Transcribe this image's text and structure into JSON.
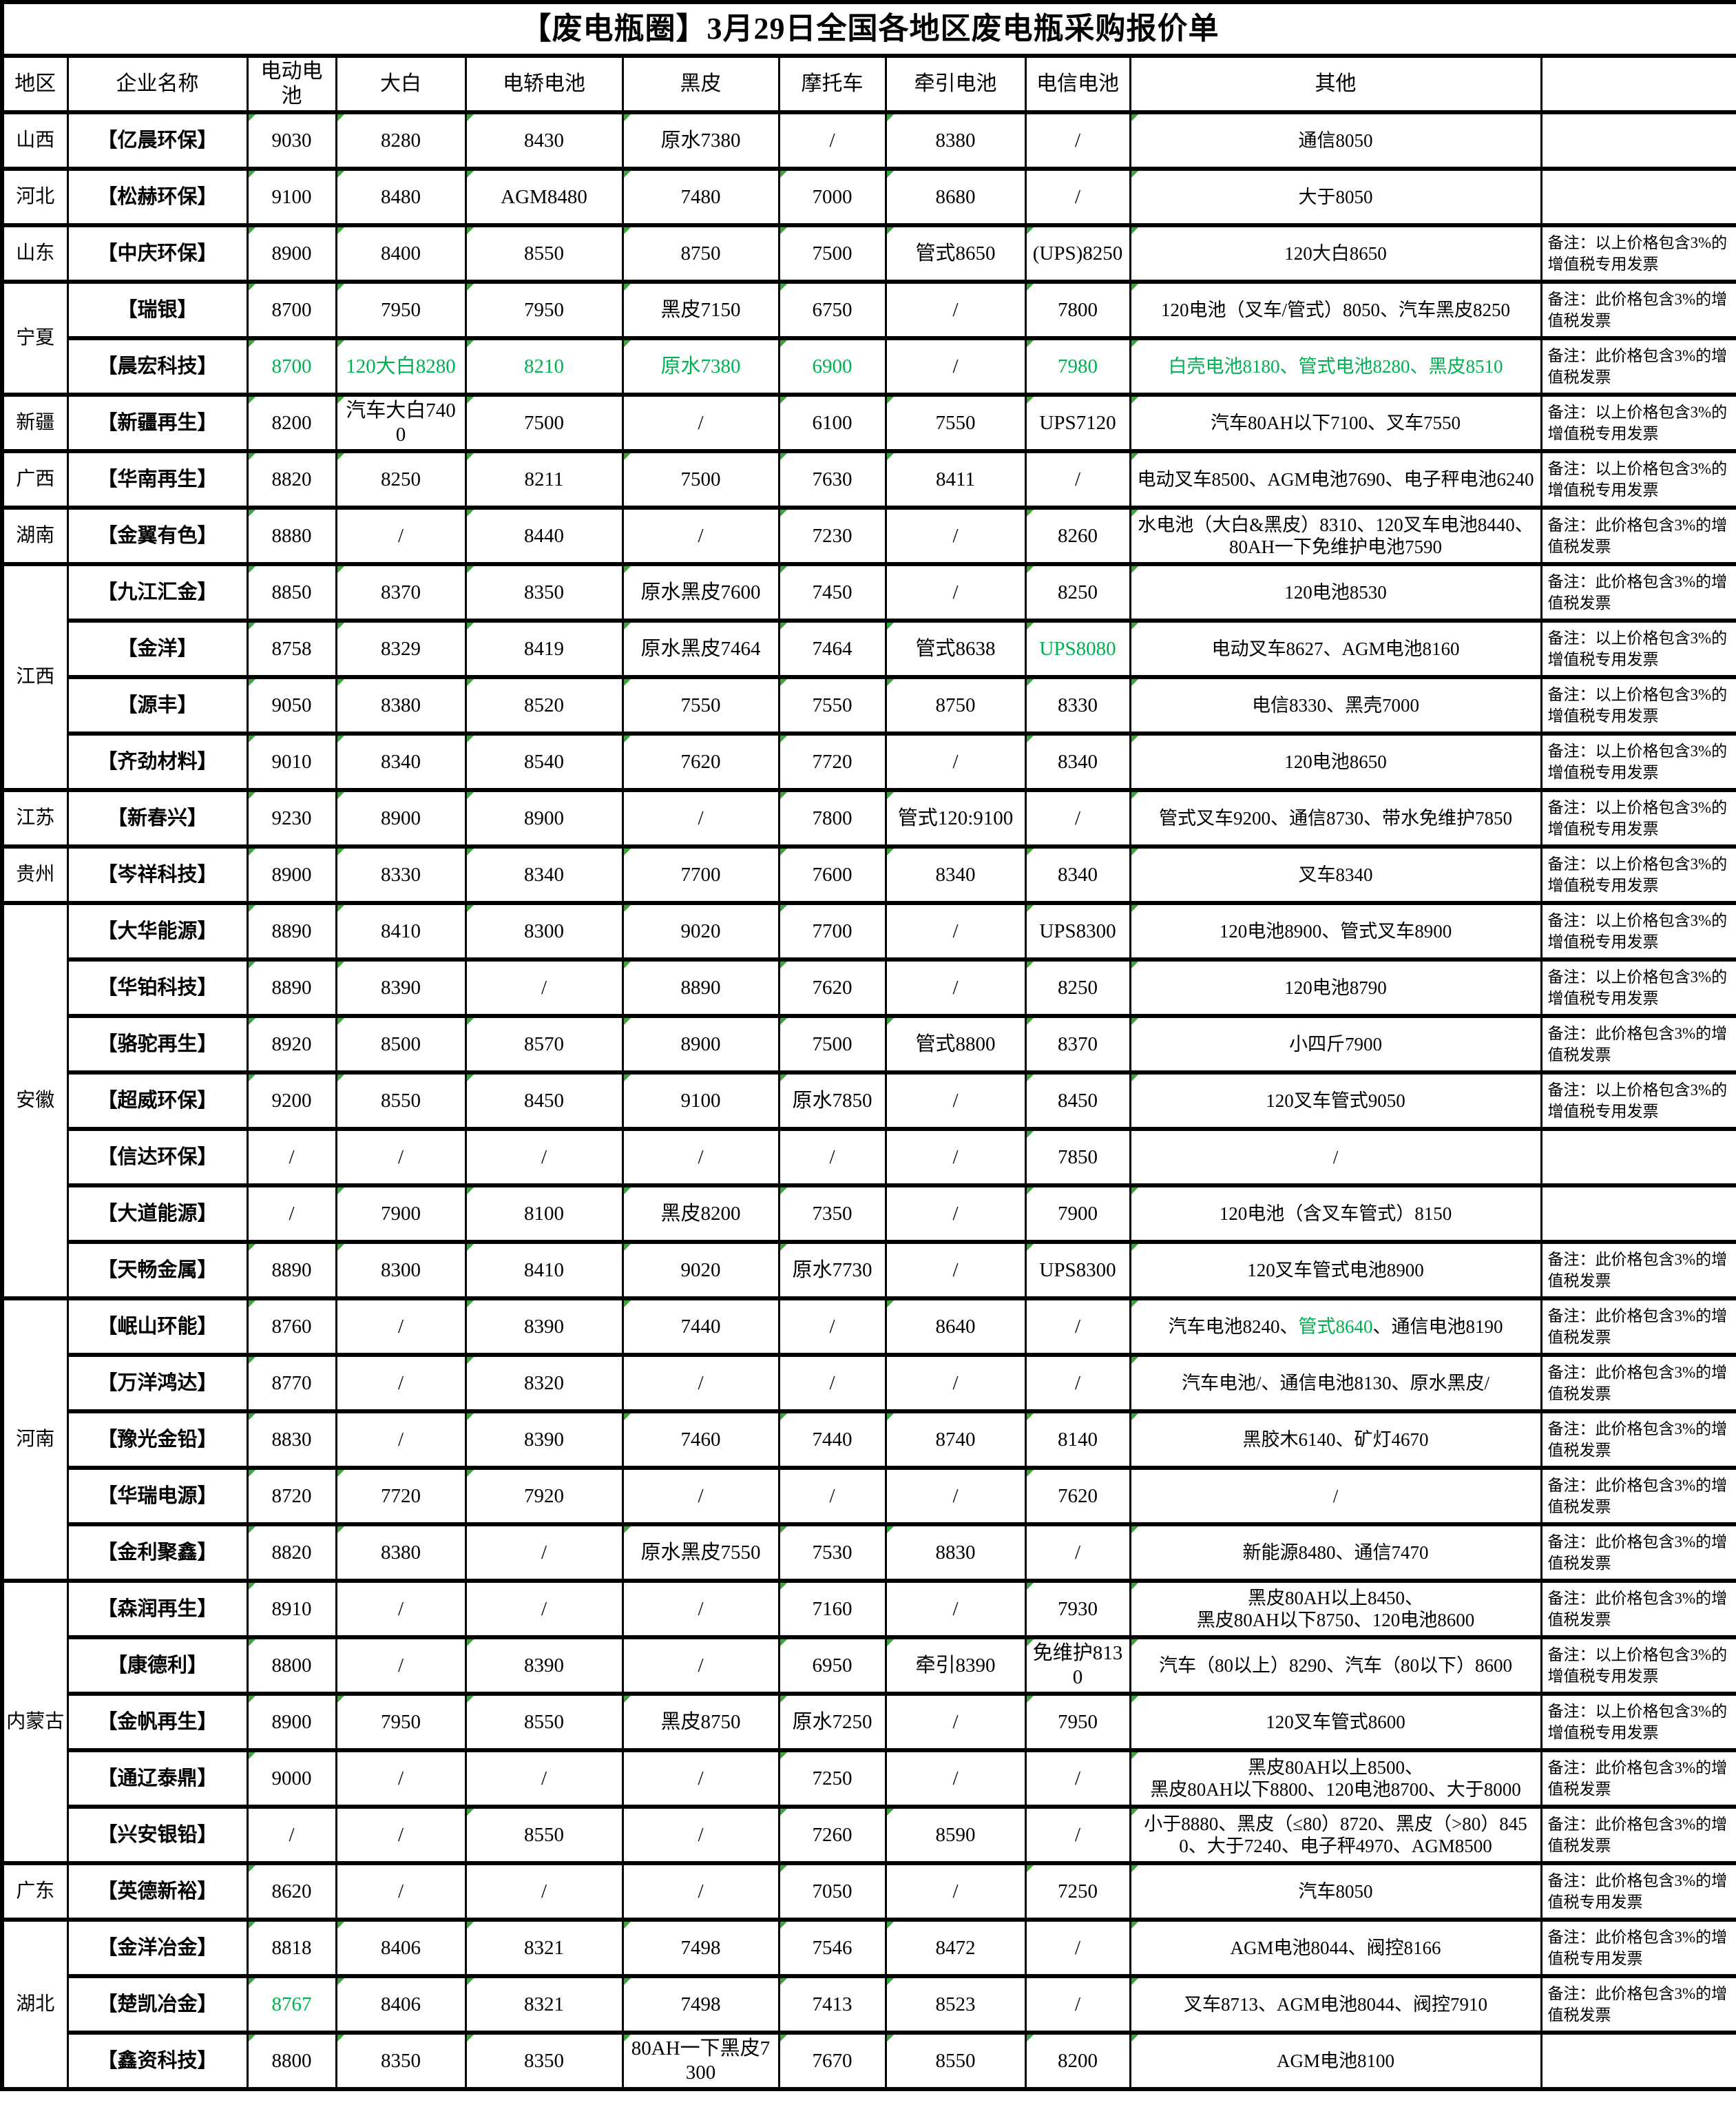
{
  "title": "【废电瓶圈】3月29日全国各地区废电瓶采购报价单",
  "colors": {
    "green_text": "#00b050",
    "marker_green": "#3fa33f",
    "border": "#000000"
  },
  "columns": [
    "地区",
    "企业名称",
    "电动电池",
    "大白",
    "电轿电池",
    "黑皮",
    "摩托车",
    "牵引电池",
    "电信电池",
    "其他",
    ""
  ],
  "regions": [
    {
      "name": "山西",
      "rows": [
        {
          "company": "【亿晨环保】",
          "values": [
            "9030",
            "8280",
            "8430",
            "原水7380",
            "/",
            "8380",
            "/",
            "通信8050"
          ],
          "note": ""
        }
      ]
    },
    {
      "name": "河北",
      "rows": [
        {
          "company": "【松赫环保】",
          "values": [
            "9100",
            "8480",
            "AGM8480",
            "7480",
            "7000",
            "8680",
            "/",
            "大于8050"
          ],
          "note": ""
        }
      ]
    },
    {
      "name": "山东",
      "rows": [
        {
          "company": "【中庆环保】",
          "values": [
            "8900",
            "8400",
            "8550",
            "8750",
            "7500",
            "管式8650",
            "(UPS)8250",
            "120大白8650"
          ],
          "note": "备注：以上价格包含3%的增值税专用发票"
        }
      ]
    },
    {
      "name": "宁夏",
      "rows": [
        {
          "company": "【瑞银】",
          "values": [
            "8700",
            "7950",
            "7950",
            "黑皮7150",
            "6750",
            "/",
            "7800",
            "120电池（叉车/管式）8050、汽车黑皮8250"
          ],
          "note": "备注：此价格包含3%的增值税发票"
        },
        {
          "company": "【晨宏科技】",
          "values": [
            "8700",
            "120大白8280",
            "8210",
            "原水7380",
            "6900",
            "/",
            "7980",
            "白壳电池8180、管式电池8280、黑皮8510"
          ],
          "green": [
            0,
            1,
            2,
            3,
            4,
            6,
            7
          ],
          "note": "备注：此价格包含3%的增值税发票"
        }
      ]
    },
    {
      "name": "新疆",
      "rows": [
        {
          "company": "【新疆再生】",
          "values": [
            "8200",
            "汽车大白7400",
            "7500",
            "/",
            "6100",
            "7550",
            "UPS7120",
            "汽车80AH以下7100、叉车7550"
          ],
          "note": "备注：以上价格包含3%的增值税专用发票"
        }
      ]
    },
    {
      "name": "广西",
      "rows": [
        {
          "company": "【华南再生】",
          "values": [
            "8820",
            "8250",
            "8211",
            "7500",
            "7630",
            "8411",
            "/",
            "电动叉车8500、AGM电池7690、电子秤电池6240"
          ],
          "note": "备注：以上价格包含3%的增值税专用发票"
        }
      ]
    },
    {
      "name": "湖南",
      "rows": [
        {
          "company": "【金翼有色】",
          "values": [
            "8880",
            "/",
            "8440",
            "/",
            "7230",
            "/",
            "8260",
            "水电池（大白&黑皮）8310、120叉车电池8440、80AH一下免维护电池7590"
          ],
          "note": "备注：此价格包含3%的增值税发票"
        }
      ]
    },
    {
      "name": "江西",
      "rows": [
        {
          "company": "【九江汇金】",
          "values": [
            "8850",
            "8370",
            "8350",
            "原水黑皮7600",
            "7450",
            "/",
            "8250",
            "120电池8530"
          ],
          "note": "备注：此价格包含3%的增值税发票"
        },
        {
          "company": "【金洋】",
          "values": [
            "8758",
            "8329",
            "8419",
            "原水黑皮7464",
            "7464",
            "管式8638",
            "UPS8080",
            "电动叉车8627、AGM电池8160"
          ],
          "green": [
            6
          ],
          "note": "备注：以上价格包含3%的增值税专用发票"
        },
        {
          "company": "【源丰】",
          "values": [
            "9050",
            "8380",
            "8520",
            "7550",
            "7550",
            "8750",
            "8330",
            "电信8330、黑壳7000"
          ],
          "note": "备注：以上价格包含3%的增值税专用发票"
        },
        {
          "company": "【齐劲材料】",
          "values": [
            "9010",
            "8340",
            "8540",
            "7620",
            "7720",
            "/",
            "8340",
            "120电池8650"
          ],
          "note": "备注：以上价格包含3%的增值税专用发票"
        }
      ]
    },
    {
      "name": "江苏",
      "rows": [
        {
          "company": "【新春兴】",
          "values": [
            "9230",
            "8900",
            "8900",
            "/",
            "7800",
            "管式120:9100",
            "/",
            "管式叉车9200、通信8730、带水免维护7850"
          ],
          "note": "备注：以上价格包含3%的增值税专用发票"
        }
      ]
    },
    {
      "name": "贵州",
      "rows": [
        {
          "company": "【岑祥科技】",
          "values": [
            "8900",
            "8330",
            "8340",
            "7700",
            "7600",
            "8340",
            "8340",
            "叉车8340"
          ],
          "note": "备注：以上价格包含3%的增值税专用发票"
        }
      ]
    },
    {
      "name": "安徽",
      "rows": [
        {
          "company": "【大华能源】",
          "values": [
            "8890",
            "8410",
            "8300",
            "9020",
            "7700",
            "/",
            "UPS8300",
            "120电池8900、管式叉车8900"
          ],
          "note": "备注：以上价格包含3%的增值税专用发票"
        },
        {
          "company": "【华铂科技】",
          "values": [
            "8890",
            "8390",
            "/",
            "8890",
            "7620",
            "/",
            "8250",
            "120电池8790"
          ],
          "note": "备注：以上价格包含3%的增值税专用发票"
        },
        {
          "company": "【骆驼再生】",
          "values": [
            "8920",
            "8500",
            "8570",
            "8900",
            "7500",
            "管式8800",
            "8370",
            "小四斤7900"
          ],
          "note": "备注：此价格包含3%的增值税发票"
        },
        {
          "company": "【超威环保】",
          "values": [
            "9200",
            "8550",
            "8450",
            "9100",
            "原水7850",
            "/",
            "8450",
            "120叉车管式9050"
          ],
          "note": "备注：以上价格包含3%的增值税专用发票"
        },
        {
          "company": "【信达环保】",
          "values": [
            "/",
            "/",
            "/",
            "/",
            "/",
            "/",
            "7850",
            "/"
          ],
          "note": ""
        },
        {
          "company": "【大道能源】",
          "values": [
            "/",
            "7900",
            "8100",
            "黑皮8200",
            "7350",
            "/",
            "7900",
            "120电池（含叉车管式）8150"
          ],
          "note": ""
        },
        {
          "company": "【天畅金属】",
          "values": [
            "8890",
            "8300",
            "8410",
            "9020",
            "原水7730",
            "/",
            "UPS8300",
            "120叉车管式电池8900"
          ],
          "note": "备注：此价格包含3%的增值税发票"
        }
      ]
    },
    {
      "name": "河南",
      "rows": [
        {
          "company": "【岷山环能】",
          "values": [
            "8760",
            "/",
            "8390",
            "7440",
            "/",
            "8640",
            "/",
            [
              {
                "t": "汽车电池8240、"
              },
              {
                "t": "管式8640",
                "g": true
              },
              {
                "t": "、通信电池8190"
              }
            ]
          ],
          "note": "备注：此价格包含3%的增值税发票"
        },
        {
          "company": "【万洋鸿达】",
          "values": [
            "8770",
            "/",
            "8320",
            "/",
            "/",
            "/",
            "/",
            "汽车电池/、通信电池8130、原水黑皮/"
          ],
          "note": "备注：此价格包含3%的增值税发票"
        },
        {
          "company": "【豫光金铅】",
          "values": [
            "8830",
            "/",
            "8390",
            "7460",
            "7440",
            "8740",
            "8140",
            "黑胶木6140、矿灯4670"
          ],
          "note": "备注：此价格包含3%的增值税发票"
        },
        {
          "company": "【华瑞电源】",
          "values": [
            "8720",
            "7720",
            "7920",
            "/",
            "/",
            "/",
            "7620",
            "/"
          ],
          "note": "备注：此价格包含3%的增值税发票"
        },
        {
          "company": "【金利聚鑫】",
          "values": [
            "8820",
            "8380",
            "/",
            "原水黑皮7550",
            "7530",
            "8830",
            "/",
            "新能源8480、通信7470"
          ],
          "note": "备注：此价格包含3%的增值税发票"
        }
      ]
    },
    {
      "name": "内蒙古",
      "rows": [
        {
          "company": "【森润再生】",
          "values": [
            "8910",
            "/",
            "/",
            "/",
            "7160",
            "/",
            "7930",
            "黑皮80AH以上8450、\n黑皮80AH以下8750、120电池8600"
          ],
          "note": "备注：此价格包含3%的增值税发票"
        },
        {
          "company": "【康德利】",
          "values": [
            "8800",
            "/",
            "8390",
            "/",
            "6950",
            "牵引8390",
            "免维护8130",
            "汽车（80以上）8290、汽车（80以下）8600"
          ],
          "note": "备注：以上价格包含3%的增值税专用发票"
        },
        {
          "company": "【金帆再生】",
          "values": [
            "8900",
            "7950",
            "8550",
            "黑皮8750",
            "原水7250",
            "/",
            "7950",
            "120叉车管式8600"
          ],
          "note": "备注：以上价格包含3%的增值税专用发票"
        },
        {
          "company": "【通辽泰鼎】",
          "values": [
            "9000",
            "/",
            "/",
            "/",
            "7250",
            "/",
            "/",
            "黑皮80AH以上8500、\n黑皮80AH以下8800、120电池8700、大于8000"
          ],
          "note": "备注：此价格包含3%的增值税发票"
        },
        {
          "company": "【兴安银铅】",
          "values": [
            "/",
            "/",
            "8550",
            "/",
            "7260",
            "8590",
            "/",
            "小于8880、黑皮（≤80）8720、黑皮（>80）8450、大于7240、电子秤4970、AGM8500"
          ],
          "note": "备注：此价格包含3%的增值税发票"
        }
      ]
    },
    {
      "name": "广东",
      "rows": [
        {
          "company": "【英德新裕】",
          "values": [
            "8620",
            "/",
            "/",
            "/",
            "7050",
            "/",
            "7250",
            "汽车8050"
          ],
          "note": "备注：此价格包含3%的增值税专用发票"
        }
      ]
    },
    {
      "name": "湖北",
      "rows": [
        {
          "company": "【金洋冶金】",
          "values": [
            "8818",
            "8406",
            "8321",
            "7498",
            "7546",
            "8472",
            "/",
            "AGM电池8044、阀控8166"
          ],
          "note": "备注：此价格包含3%的增值税专用发票"
        },
        {
          "company": "【楚凯冶金】",
          "values": [
            "8767",
            "8406",
            "8321",
            "7498",
            "7413",
            "8523",
            "/",
            "叉车8713、AGM电池8044、阀控7910"
          ],
          "green": [
            0
          ],
          "note": "备注：此价格包含3%的增值税发票"
        },
        {
          "company": "【鑫资科技】",
          "values": [
            "8800",
            "8350",
            "8350",
            "80AH一下黑皮7300",
            "7670",
            "8550",
            "8200",
            "AGM电池8100"
          ],
          "note": ""
        }
      ]
    }
  ]
}
